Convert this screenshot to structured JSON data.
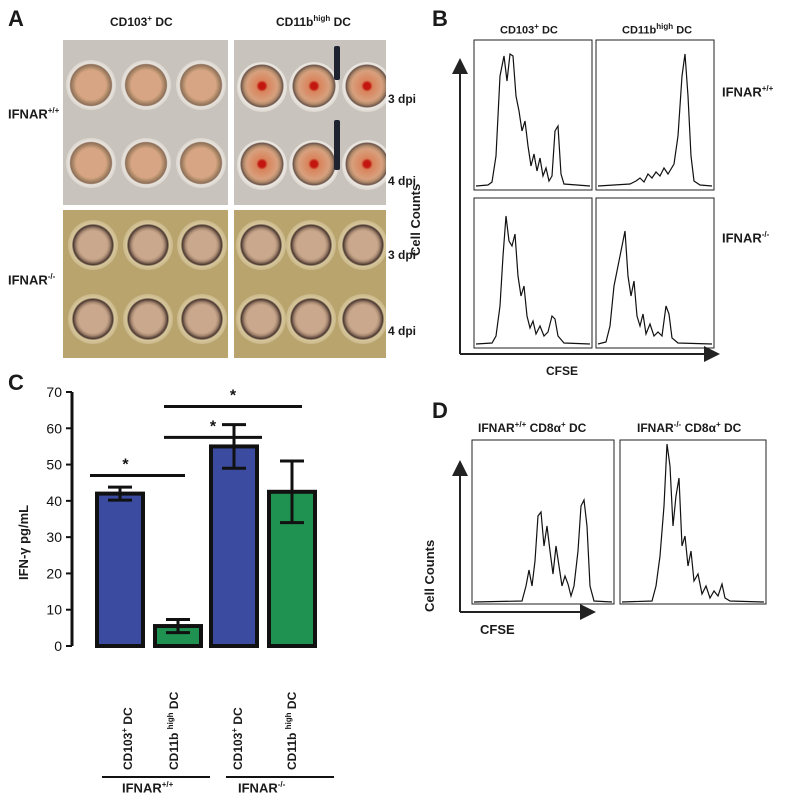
{
  "panel_a": {
    "letter": "A",
    "col_headers": [
      "CD103",
      "CD11b"
    ],
    "col_header_sup": [
      "+",
      "high"
    ],
    "col_header_suffix": " DC",
    "row_labels": [
      "IFNAR",
      "IFNAR"
    ],
    "row_label_sup": [
      "+/+",
      "-/-"
    ],
    "dpi_labels": [
      "3 dpi",
      "4 dpi",
      "3 dpi",
      "4 dpi"
    ]
  },
  "panel_b": {
    "letter": "B",
    "col_headers": [
      "CD103",
      "CD11b"
    ],
    "col_header_sup": [
      "+",
      "high"
    ],
    "col_header_suffix": " DC",
    "row_labels": [
      "IFNAR",
      "IFNAR"
    ],
    "row_label_sup": [
      "+/+",
      "-/-"
    ],
    "ylabel": "Cell Counts",
    "xlabel": "CFSE"
  },
  "panel_d": {
    "letter": "D",
    "headers": [
      "IFNAR",
      "IFNAR"
    ],
    "header_sup": [
      "+/+",
      "-/-"
    ],
    "header_suffix": "CD8α",
    "header_suffix_sup": "+",
    "header_tail": " DC",
    "ylabel": "Cell Counts",
    "xlabel": "CFSE"
  },
  "chart_data": {
    "type": "bar",
    "letter": "C",
    "ylabel": "IFN-γ  pg/mL",
    "ylim": [
      0,
      70
    ],
    "yticks": [
      0,
      10,
      20,
      30,
      40,
      50,
      60,
      70
    ],
    "categories": [
      "CD103+ DC",
      "CD11b high DC",
      "CD103+ DC",
      "CD11b high DC"
    ],
    "category_parts": [
      {
        "main": "CD103",
        "sup": "+",
        "tail": " DC"
      },
      {
        "main": "CD11b ",
        "sup": "high",
        "tail": " DC"
      },
      {
        "main": "CD103",
        "sup": "+",
        "tail": " DC"
      },
      {
        "main": "CD11b ",
        "sup": "high",
        "tail": " DC"
      }
    ],
    "values": [
      42,
      5.5,
      55,
      42.5
    ],
    "errors": [
      1.8,
      1.8,
      6,
      8.5
    ],
    "colors": [
      "#3a4ba0",
      "#1f9150",
      "#3a4ba0",
      "#1f9150"
    ],
    "groups": [
      {
        "label": "IFNAR",
        "sup": "+/+"
      },
      {
        "label": "IFNAR",
        "sup": "-/-"
      }
    ],
    "significance_marker": "*",
    "significance": [
      {
        "from": 0,
        "to": 1,
        "y": 47
      },
      {
        "from": 1,
        "to": 2,
        "y": 57.5
      },
      {
        "from": 1,
        "to": 3,
        "y": 66
      }
    ]
  }
}
